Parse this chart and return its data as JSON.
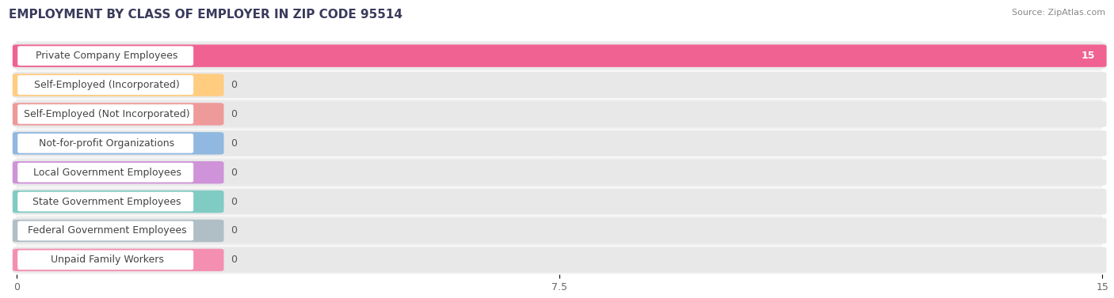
{
  "title": "EMPLOYMENT BY CLASS OF EMPLOYER IN ZIP CODE 95514",
  "source": "Source: ZipAtlas.com",
  "categories": [
    "Private Company Employees",
    "Self-Employed (Incorporated)",
    "Self-Employed (Not Incorporated)",
    "Not-for-profit Organizations",
    "Local Government Employees",
    "State Government Employees",
    "Federal Government Employees",
    "Unpaid Family Workers"
  ],
  "values": [
    15,
    0,
    0,
    0,
    0,
    0,
    0,
    0
  ],
  "bar_colors": [
    "#F06292",
    "#FFCC80",
    "#EF9A9A",
    "#90B8E0",
    "#CE93D8",
    "#80CBC4",
    "#B0BEC5",
    "#F48FB1"
  ],
  "xlim": [
    0,
    15
  ],
  "xticks": [
    0,
    7.5,
    15
  ],
  "row_bg_color_odd": "#EFEFEF",
  "row_bg_color_even": "#F8F8F8",
  "row_pill_color": "#E5E5E5",
  "title_fontsize": 11,
  "label_fontsize": 9,
  "value_fontsize": 9
}
